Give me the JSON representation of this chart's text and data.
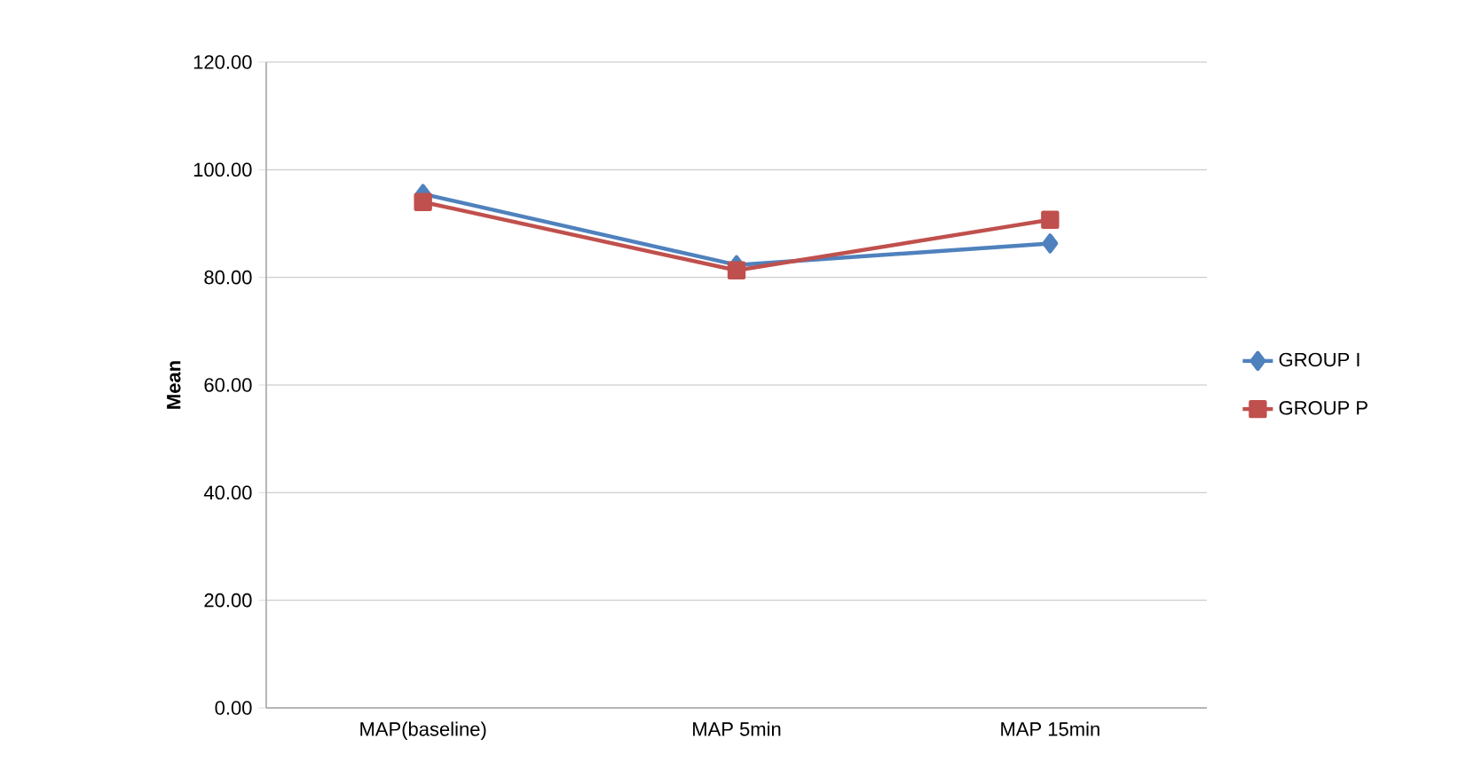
{
  "chart_data": {
    "type": "line",
    "ylabel": "Mean",
    "categories": [
      "MAP(baseline)",
      "MAP 5min",
      "MAP 15min"
    ],
    "series": [
      {
        "name": "GROUP I",
        "color": "#4f81bd",
        "marker": "diamond",
        "values": [
          95.5,
          82.3,
          86.3
        ]
      },
      {
        "name": "GROUP P",
        "color": "#c0504d",
        "marker": "square",
        "values": [
          94.0,
          81.3,
          90.7
        ]
      }
    ],
    "ylim": [
      0,
      120
    ],
    "yticks": [
      {
        "value": 0,
        "label": "0.00"
      },
      {
        "value": 20,
        "label": "20.00"
      },
      {
        "value": 40,
        "label": "40.00"
      },
      {
        "value": 60,
        "label": "60.00"
      },
      {
        "value": 80,
        "label": "80.00"
      },
      {
        "value": 100,
        "label": "100.00"
      },
      {
        "value": 120,
        "label": "120.00"
      }
    ],
    "grid": "y",
    "legend": "right"
  }
}
